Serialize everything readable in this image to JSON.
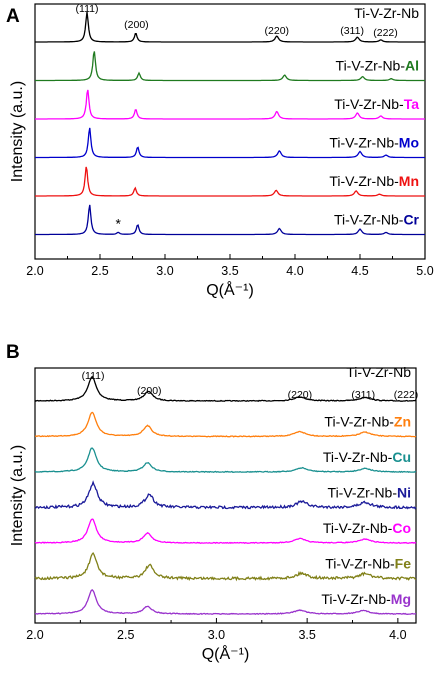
{
  "chart_data": [
    {
      "type": "line",
      "panel": "A",
      "xlabel": "Q(Å⁻¹)",
      "ylabel": "Intensity (a.u.)",
      "xlim": [
        2.0,
        5.0
      ],
      "xticks": [
        "2.0",
        "2.5",
        "3.0",
        "3.5",
        "4.0",
        "4.5",
        "5.0"
      ],
      "peak_labels": [
        {
          "text": "(111)",
          "q": 2.4
        },
        {
          "text": "(200)",
          "q": 2.78
        },
        {
          "text": "(220)",
          "q": 3.86
        },
        {
          "text": "(311)",
          "q": 4.47
        },
        {
          "text": "(222)",
          "q": 4.65
        }
      ],
      "annotation": {
        "text": "*",
        "q": 2.64
      },
      "series": [
        {
          "name": "Ti-V-Zr-Nb",
          "prefix": "Ti-V-Zr-Nb",
          "suffix": "",
          "color": "#000000",
          "peaks": [
            [
              2.4,
              1.0
            ],
            [
              2.775,
              0.3
            ],
            [
              3.86,
              0.2
            ],
            [
              4.48,
              0.16
            ],
            [
              4.66,
              0.07
            ]
          ]
        },
        {
          "name": "Ti-V-Zr-Nb-Al",
          "prefix": "Ti-V-Zr-Nb-",
          "suffix": "Al",
          "color": "#1f7a1f",
          "peaks": [
            [
              2.455,
              1.0
            ],
            [
              2.8,
              0.25
            ],
            [
              3.92,
              0.18
            ],
            [
              4.52,
              0.13
            ],
            [
              4.74,
              0.06
            ]
          ]
        },
        {
          "name": "Ti-V-Zr-Nb-Ta",
          "prefix": "Ti-V-Zr-Nb-",
          "suffix": "Ta",
          "color": "#ff00ff",
          "peaks": [
            [
              2.405,
              1.0
            ],
            [
              2.775,
              0.33
            ],
            [
              3.86,
              0.25
            ],
            [
              4.48,
              0.2
            ],
            [
              4.66,
              0.1
            ]
          ]
        },
        {
          "name": "Ti-V-Zr-Nb-Mo",
          "prefix": "Ti-V-Zr-Nb-",
          "suffix": "Mo",
          "color": "#0000cc",
          "peaks": [
            [
              2.42,
              1.0
            ],
            [
              2.79,
              0.35
            ],
            [
              3.88,
              0.22
            ],
            [
              4.5,
              0.2
            ],
            [
              4.7,
              0.08
            ]
          ]
        },
        {
          "name": "Ti-V-Zr-Nb-Mn",
          "prefix": "Ti-V-Zr-Nb-",
          "suffix": "Mn",
          "color": "#ee1111",
          "peaks": [
            [
              2.395,
              1.0
            ],
            [
              2.77,
              0.27
            ],
            [
              3.855,
              0.19
            ],
            [
              4.47,
              0.17
            ],
            [
              4.65,
              0.06
            ]
          ]
        },
        {
          "name": "Ti-V-Zr-Nb-Cr",
          "prefix": "Ti-V-Zr-Nb-",
          "suffix": "Cr",
          "color": "#000099",
          "peaks": [
            [
              2.42,
              1.0
            ],
            [
              2.64,
              0.07
            ],
            [
              2.79,
              0.33
            ],
            [
              3.88,
              0.2
            ],
            [
              4.5,
              0.18
            ],
            [
              4.7,
              0.07
            ]
          ]
        }
      ]
    },
    {
      "type": "line",
      "panel": "B",
      "xlabel": "Q(Å⁻¹)",
      "ylabel": "Intensity (a.u.)",
      "xlim": [
        2.0,
        4.1
      ],
      "xticks": [
        "2.0",
        "2.5",
        "3.0",
        "3.5",
        "4.0"
      ],
      "peak_labels": [
        {
          "text": "(111)",
          "q": 2.32
        },
        {
          "text": "(200)",
          "q": 2.63
        },
        {
          "text": "(220)",
          "q": 3.46
        },
        {
          "text": "(311)",
          "q": 3.82
        },
        {
          "text": "(222)",
          "q": 3.99
        }
      ],
      "series": [
        {
          "name": "Ti-V-Zr-Nb",
          "prefix": "Ti-V-Zr-Nb",
          "suffix": "",
          "color": "#000000",
          "peaks": [
            [
              2.315,
              1.0
            ],
            [
              2.625,
              0.4
            ],
            [
              3.46,
              0.17
            ],
            [
              3.82,
              0.15
            ]
          ]
        },
        {
          "name": "Ti-V-Zr-Nb-Zn",
          "prefix": "Ti-V-Zr-Nb-",
          "suffix": "Zn",
          "color": "#ff7f0e",
          "peaks": [
            [
              2.315,
              1.0
            ],
            [
              2.62,
              0.45
            ],
            [
              3.46,
              0.2
            ],
            [
              3.82,
              0.18
            ]
          ]
        },
        {
          "name": "Ti-V-Zr-Nb-Cu",
          "prefix": "Ti-V-Zr-Nb-",
          "suffix": "Cu",
          "color": "#1a9090",
          "peaks": [
            [
              2.315,
              1.0
            ],
            [
              2.62,
              0.38
            ],
            [
              3.47,
              0.17
            ],
            [
              3.82,
              0.15
            ]
          ]
        },
        {
          "name": "Ti-V-Zr-Nb-Ni",
          "prefix": "Ti-V-Zr-Nb-",
          "suffix": "Ni",
          "color": "#1a1a99",
          "peaks": [
            [
              2.32,
              1.0
            ],
            [
              2.63,
              0.55
            ],
            [
              3.47,
              0.24
            ],
            [
              3.82,
              0.22
            ]
          ]
        },
        {
          "name": "Ti-V-Zr-Nb-Co",
          "prefix": "Ti-V-Zr-Nb-",
          "suffix": "Co",
          "color": "#ff00ff",
          "peaks": [
            [
              2.315,
              1.0
            ],
            [
              2.62,
              0.4
            ],
            [
              3.46,
              0.18
            ],
            [
              3.82,
              0.16
            ]
          ]
        },
        {
          "name": "Ti-V-Zr-Nb-Fe",
          "prefix": "Ti-V-Zr-Nb-",
          "suffix": "Fe",
          "color": "#808018",
          "peaks": [
            [
              2.32,
              1.0
            ],
            [
              2.63,
              0.55
            ],
            [
              3.47,
              0.22
            ],
            [
              3.82,
              0.2
            ]
          ]
        },
        {
          "name": "Ti-V-Zr-Nb-Mg",
          "prefix": "Ti-V-Zr-Nb-",
          "suffix": "Mg",
          "color": "#9933cc",
          "peaks": [
            [
              2.315,
              1.0
            ],
            [
              2.62,
              0.32
            ],
            [
              3.46,
              0.16
            ],
            [
              3.81,
              0.14
            ]
          ]
        }
      ]
    }
  ]
}
